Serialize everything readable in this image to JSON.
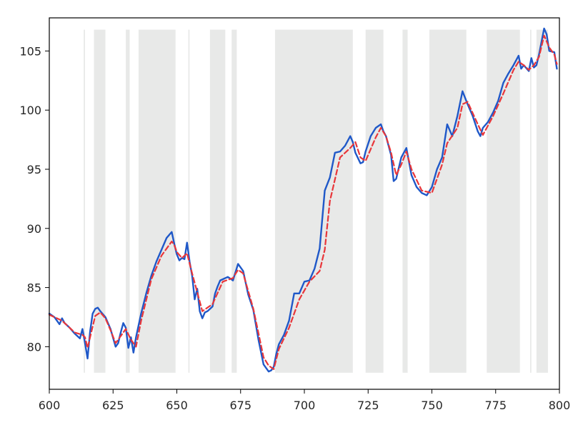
{
  "chart_data": {
    "type": "line",
    "title": "",
    "xlabel": "",
    "ylabel": "",
    "xlim": [
      600,
      800
    ],
    "ylim": [
      76.4,
      107.8
    ],
    "grid": false,
    "x_ticks": [
      600,
      625,
      650,
      675,
      700,
      725,
      750,
      775,
      800
    ],
    "x_tick_labels": [
      "600",
      "625",
      "650",
      "675",
      "700",
      "725",
      "750",
      "775",
      "800"
    ],
    "y_ticks": [
      80,
      85,
      90,
      95,
      100,
      105
    ],
    "y_tick_labels": [
      "80",
      "85",
      "90",
      "95",
      "100",
      "105"
    ],
    "shaded_regions": {
      "color": "#e8e9e8",
      "y_range": [
        77.8,
        106.8
      ],
      "x_ranges": [
        [
          613.5,
          614
        ],
        [
          617.5,
          622
        ],
        [
          630,
          631.5
        ],
        [
          635,
          649.5
        ],
        [
          654.5,
          655
        ],
        [
          663,
          669
        ],
        [
          671.5,
          673.5
        ],
        [
          688.5,
          719
        ],
        [
          724,
          731
        ],
        [
          738.5,
          740.5
        ],
        [
          749,
          763.5
        ],
        [
          771.5,
          784.5
        ],
        [
          788.5,
          789
        ],
        [
          791,
          795.5
        ]
      ]
    },
    "series": [
      {
        "color": "#1f58c8",
        "style": "solid",
        "x": [
          600,
          602,
          604,
          605,
          606,
          608,
          610,
          612,
          613,
          614,
          615,
          616,
          617,
          618,
          619,
          620,
          622,
          624,
          626,
          627,
          628,
          629,
          630,
          631,
          632,
          633,
          634,
          636,
          638,
          640,
          642,
          644,
          646,
          648,
          649,
          650,
          651,
          652,
          653,
          654,
          655,
          656,
          657,
          658,
          659,
          660,
          661,
          662,
          664,
          665,
          666,
          667,
          668,
          670,
          672,
          673,
          674,
          676,
          678,
          680,
          682,
          684,
          685,
          686,
          687,
          688,
          689,
          690,
          692,
          694,
          696,
          698,
          700,
          702,
          704,
          706,
          708,
          710,
          712,
          714,
          716,
          718,
          719,
          720,
          722,
          723,
          724,
          726,
          728,
          730,
          731,
          732,
          734,
          735,
          736,
          738,
          740,
          742,
          744,
          746,
          748,
          750,
          752,
          754,
          756,
          758,
          760,
          762,
          764,
          766,
          768,
          769,
          770,
          772,
          774,
          776,
          778,
          780,
          782,
          784,
          785,
          786,
          788,
          789,
          790,
          791,
          792,
          794,
          795,
          796,
          798,
          799
        ],
        "y": [
          82.8,
          82.5,
          81.9,
          82.4,
          82.0,
          81.6,
          81.1,
          80.7,
          81.5,
          80.3,
          79.0,
          81.3,
          82.8,
          83.2,
          83.3,
          83.0,
          82.5,
          81.5,
          80.0,
          80.3,
          81.2,
          82.0,
          81.6,
          79.9,
          80.8,
          79.5,
          80.8,
          82.8,
          84.5,
          86.0,
          87.2,
          88.2,
          89.2,
          89.7,
          88.7,
          87.8,
          87.3,
          87.5,
          87.4,
          88.8,
          87.2,
          86.0,
          84.0,
          84.9,
          83.0,
          82.4,
          82.9,
          83.0,
          83.4,
          84.5,
          85.1,
          85.6,
          85.7,
          85.9,
          85.6,
          86.3,
          87.0,
          86.4,
          84.4,
          83.1,
          80.6,
          78.5,
          78.2,
          77.9,
          78.0,
          78.3,
          79.4,
          80.2,
          81.0,
          82.2,
          84.5,
          84.5,
          85.5,
          85.6,
          86.6,
          88.3,
          93.2,
          94.3,
          96.4,
          96.5,
          97.0,
          97.8,
          97.3,
          96.4,
          95.5,
          95.6,
          96.5,
          97.8,
          98.5,
          98.8,
          98.2,
          97.8,
          96.2,
          94.0,
          94.2,
          96.0,
          96.8,
          94.5,
          93.5,
          93.0,
          92.8,
          93.5,
          95.0,
          96.0,
          98.8,
          97.8,
          99.5,
          101.6,
          100.5,
          99.5,
          98.2,
          97.8,
          98.5,
          99.0,
          99.8,
          100.8,
          102.3,
          103.1,
          103.8,
          104.6,
          103.5,
          103.8,
          103.3,
          104.4,
          103.6,
          103.8,
          104.7,
          106.9,
          106.4,
          105.0,
          104.9,
          103.5
        ]
      },
      {
        "color": "#e8363a",
        "style": "dashed",
        "x": [
          600,
          605,
          610,
          613,
          614,
          615,
          616,
          618,
          620,
          622,
          624,
          626,
          628,
          630,
          632,
          634,
          636,
          640,
          644,
          648,
          649,
          650,
          652,
          654,
          656,
          658,
          660,
          664,
          668,
          672,
          674,
          676,
          680,
          684,
          686,
          688,
          690,
          694,
          698,
          702,
          706,
          708,
          710,
          714,
          718,
          720,
          722,
          724,
          728,
          730,
          732,
          734,
          736,
          738,
          740,
          742,
          746,
          750,
          754,
          756,
          760,
          762,
          764,
          768,
          770,
          774,
          778,
          782,
          784,
          786,
          788,
          790,
          792,
          794,
          796,
          798,
          799
        ],
        "y": [
          82.7,
          82.2,
          81.2,
          81.0,
          80.8,
          79.9,
          80.8,
          82.6,
          82.9,
          82.4,
          81.4,
          80.3,
          80.9,
          81.5,
          80.6,
          80.0,
          82.2,
          85.7,
          87.7,
          88.9,
          88.6,
          88.0,
          87.5,
          87.9,
          86.2,
          84.6,
          83.0,
          83.6,
          85.5,
          85.8,
          86.5,
          86.2,
          83.2,
          79.1,
          78.4,
          78.1,
          79.8,
          81.6,
          84.0,
          85.5,
          86.4,
          88.2,
          92.3,
          96.0,
          96.8,
          97.3,
          96.0,
          95.7,
          97.7,
          98.5,
          97.8,
          96.4,
          94.5,
          95.4,
          96.5,
          95.0,
          93.2,
          93.0,
          95.4,
          97.2,
          98.5,
          100.5,
          100.7,
          98.8,
          97.9,
          99.5,
          101.4,
          103.4,
          104.1,
          103.8,
          103.4,
          103.8,
          104.5,
          106.3,
          105.3,
          104.7,
          103.9
        ]
      }
    ]
  }
}
